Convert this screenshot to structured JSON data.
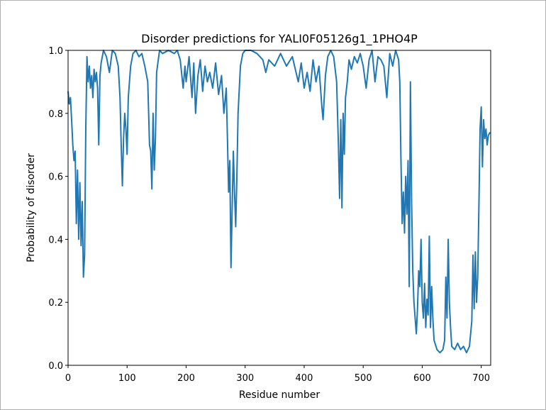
{
  "chart_data": {
    "type": "line",
    "title": "Disorder predictions for YALI0F05126g1_1PHO4P",
    "xlabel": "Residue number",
    "ylabel": "Probability of disorder",
    "color": "#1f77b4",
    "xlim": [
      0,
      716
    ],
    "ylim": [
      0,
      1
    ],
    "xticks": [
      0,
      100,
      200,
      300,
      400,
      500,
      600,
      700
    ],
    "yticks": [
      {
        "value": 0,
        "label": "0.0"
      },
      0.2,
      0.4,
      0.6,
      0.8,
      {
        "value": 1,
        "label": "1.0"
      }
    ],
    "x": [
      0,
      2,
      4,
      6,
      8,
      10,
      12,
      14,
      16,
      18,
      20,
      22,
      24,
      26,
      28,
      30,
      32,
      34,
      36,
      38,
      40,
      42,
      44,
      46,
      48,
      50,
      52,
      54,
      56,
      60,
      65,
      70,
      75,
      80,
      85,
      88,
      90,
      92,
      94,
      96,
      98,
      100,
      102,
      106,
      110,
      115,
      120,
      125,
      130,
      135,
      138,
      140,
      142,
      144,
      146,
      148,
      150,
      155,
      160,
      170,
      180,
      185,
      190,
      195,
      198,
      200,
      205,
      210,
      213,
      216,
      220,
      224,
      228,
      232,
      236,
      240,
      245,
      250,
      255,
      260,
      264,
      268,
      270,
      272,
      274,
      276,
      278,
      280,
      282,
      284,
      286,
      288,
      292,
      296,
      300,
      310,
      320,
      330,
      335,
      340,
      350,
      360,
      370,
      380,
      390,
      395,
      400,
      405,
      410,
      415,
      420,
      425,
      430,
      432,
      436,
      440,
      445,
      450,
      455,
      458,
      460,
      462,
      464,
      466,
      468,
      470,
      473,
      476,
      480,
      485,
      490,
      495,
      500,
      505,
      510,
      515,
      520,
      525,
      530,
      535,
      540,
      545,
      550,
      555,
      560,
      562,
      564,
      566,
      568,
      570,
      572,
      574,
      576,
      578,
      580,
      582,
      584,
      586,
      588,
      590,
      592,
      594,
      596,
      598,
      600,
      602,
      604,
      606,
      608,
      610,
      612,
      614,
      616,
      618,
      620,
      625,
      630,
      635,
      638,
      640,
      642,
      644,
      646,
      648,
      650,
      655,
      660,
      665,
      670,
      675,
      680,
      684,
      686,
      688,
      690,
      692,
      694,
      696,
      698,
      700,
      702,
      704,
      706,
      708,
      710,
      712,
      715
    ],
    "values": [
      0.87,
      0.83,
      0.85,
      0.78,
      0.7,
      0.65,
      0.68,
      0.45,
      0.62,
      0.4,
      0.58,
      0.38,
      0.52,
      0.28,
      0.35,
      0.75,
      0.98,
      0.9,
      0.95,
      0.88,
      0.92,
      0.85,
      0.94,
      0.9,
      0.93,
      0.88,
      0.7,
      0.92,
      0.96,
      1.0,
      0.98,
      0.93,
      1.0,
      0.99,
      0.95,
      0.85,
      0.7,
      0.57,
      0.72,
      0.8,
      0.75,
      0.67,
      0.85,
      0.95,
      0.99,
      1.0,
      0.98,
      0.99,
      0.95,
      0.9,
      0.7,
      0.68,
      0.56,
      0.8,
      0.62,
      0.72,
      0.93,
      1.0,
      0.99,
      1.0,
      0.99,
      1.0,
      0.97,
      0.88,
      0.95,
      0.9,
      0.98,
      0.85,
      0.96,
      0.8,
      0.92,
      0.97,
      0.87,
      0.95,
      0.9,
      0.93,
      0.88,
      0.96,
      0.86,
      0.92,
      0.8,
      0.88,
      0.72,
      0.55,
      0.65,
      0.31,
      0.5,
      0.68,
      0.55,
      0.44,
      0.6,
      0.8,
      0.95,
      0.99,
      1.0,
      1.0,
      0.99,
      0.97,
      0.93,
      0.97,
      0.95,
      0.99,
      0.95,
      0.98,
      0.9,
      0.96,
      0.88,
      0.93,
      0.87,
      0.97,
      0.9,
      0.95,
      0.82,
      0.78,
      0.92,
      0.98,
      1.0,
      0.98,
      0.9,
      0.7,
      0.53,
      0.78,
      0.5,
      0.8,
      0.67,
      0.85,
      0.9,
      0.97,
      0.94,
      0.98,
      0.96,
      0.99,
      0.95,
      0.88,
      0.97,
      1.0,
      0.9,
      0.98,
      0.97,
      0.95,
      0.85,
      0.99,
      0.95,
      1.0,
      0.97,
      0.9,
      0.65,
      0.45,
      0.55,
      0.42,
      0.6,
      0.48,
      0.65,
      0.25,
      0.9,
      0.52,
      0.3,
      0.2,
      0.15,
      0.1,
      0.18,
      0.3,
      0.25,
      0.4,
      0.2,
      0.15,
      0.26,
      0.12,
      0.21,
      0.16,
      0.41,
      0.12,
      0.25,
      0.15,
      0.08,
      0.05,
      0.04,
      0.05,
      0.08,
      0.28,
      0.15,
      0.4,
      0.2,
      0.12,
      0.06,
      0.05,
      0.07,
      0.05,
      0.06,
      0.04,
      0.06,
      0.14,
      0.35,
      0.18,
      0.36,
      0.2,
      0.28,
      0.5,
      0.75,
      0.82,
      0.63,
      0.78,
      0.72,
      0.75,
      0.7,
      0.73,
      0.74
    ]
  }
}
